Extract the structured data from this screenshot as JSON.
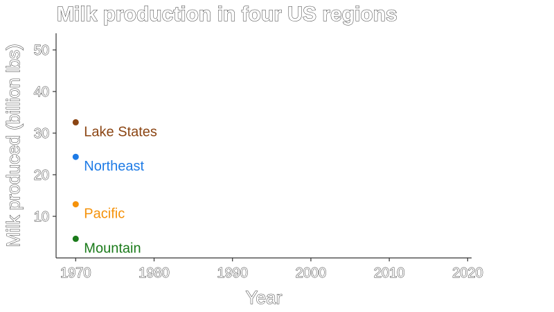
{
  "chart_data": {
    "type": "scatter",
    "title": "Milk production in four US regions",
    "xlabel": "Year",
    "ylabel": "Milk produced (billion lbs)",
    "xlim": [
      1967.5,
      2020.5
    ],
    "ylim": [
      0,
      54
    ],
    "x_ticks": [
      1970,
      1980,
      1990,
      2000,
      2010,
      2020
    ],
    "y_ticks": [
      10,
      20,
      30,
      40,
      50
    ],
    "grid": false,
    "legend": "none",
    "series": [
      {
        "name": "Lake States",
        "color": "#8B4513",
        "points": [
          {
            "x": 1970,
            "y": 32.6
          }
        ]
      },
      {
        "name": "Northeast",
        "color": "#1E7BE6",
        "points": [
          {
            "x": 1970,
            "y": 24.3
          }
        ]
      },
      {
        "name": "Pacific",
        "color": "#F5920A",
        "points": [
          {
            "x": 1970,
            "y": 12.9
          }
        ]
      },
      {
        "name": "Mountain",
        "color": "#1A7A1A",
        "points": [
          {
            "x": 1970,
            "y": 4.6
          }
        ]
      }
    ]
  }
}
